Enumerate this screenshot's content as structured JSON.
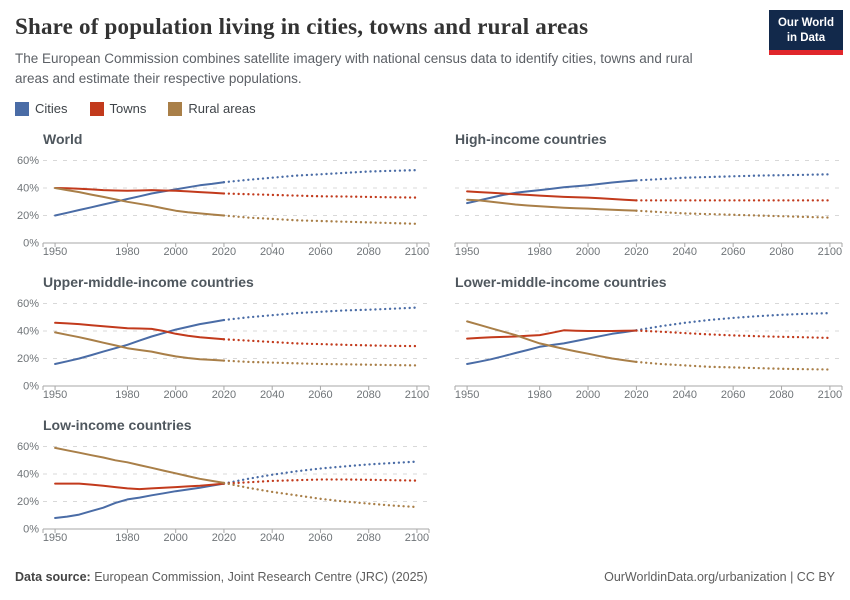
{
  "header": {
    "title": "Share of population living in cities, towns and rural areas",
    "subtitle": "The European Commission combines satellite imagery with national census data to identify cities, towns and rural areas and estimate their respective populations.",
    "logo": {
      "line1": "Our World",
      "line2": "in Data",
      "bg": "#12294B",
      "accent": "#E0262B"
    }
  },
  "legend": [
    {
      "label": "Cities",
      "color": "#4A6CA6"
    },
    {
      "label": "Towns",
      "color": "#C23A1C"
    },
    {
      "label": "Rural areas",
      "color": "#A97F48"
    }
  ],
  "axis": {
    "x_min": 1945,
    "x_max": 2105,
    "x_ticks": [
      1950,
      1980,
      2000,
      2020,
      2040,
      2060,
      2080,
      2100
    ],
    "y_ticks": [
      0,
      20,
      40,
      60
    ],
    "y_tick_labels": [
      "0%",
      "20%",
      "40%",
      "60%"
    ],
    "grid_color": "#d8d8d8",
    "axis_color": "#a7a7a7",
    "label_color": "#6f7478"
  },
  "chart_data": [
    {
      "type": "line",
      "title": "World",
      "y_labels": true,
      "hist_years": [
        1950,
        1955,
        1960,
        1965,
        1970,
        1975,
        1980,
        1985,
        1990,
        1995,
        2000,
        2005,
        2010,
        2015,
        2020
      ],
      "proj_years": [
        2020,
        2030,
        2040,
        2050,
        2060,
        2070,
        2080,
        2090,
        2100
      ],
      "series": [
        {
          "name": "Cities",
          "color": "#4A6CA6",
          "hist": [
            20,
            22,
            24,
            26,
            28,
            30,
            32,
            34,
            36,
            37.5,
            39,
            40.5,
            42,
            43,
            44.2
          ],
          "proj": [
            44.2,
            46,
            47.5,
            49,
            50,
            51,
            52,
            52.5,
            53
          ]
        },
        {
          "name": "Towns",
          "color": "#C23A1C",
          "hist": [
            40,
            39.8,
            39.5,
            39,
            38.5,
            38.2,
            38,
            38.2,
            38.5,
            38.2,
            38,
            37.5,
            37,
            36.5,
            36
          ],
          "proj": [
            36,
            35.5,
            35,
            34.5,
            34,
            33.8,
            33.5,
            33.2,
            33
          ]
        },
        {
          "name": "Rural areas",
          "color": "#A97F48",
          "hist": [
            40,
            38.5,
            37,
            35.2,
            33.5,
            31.7,
            30,
            28.5,
            27,
            25.2,
            23.5,
            22.3,
            21.5,
            20.7,
            20
          ],
          "proj": [
            20,
            18.5,
            17.5,
            16.5,
            16,
            15.5,
            15,
            14.5,
            14
          ]
        }
      ]
    },
    {
      "type": "line",
      "title": "High-income countries",
      "y_labels": false,
      "hist_years": [
        1950,
        1955,
        1960,
        1965,
        1970,
        1975,
        1980,
        1985,
        1990,
        1995,
        2000,
        2005,
        2010,
        2015,
        2020
      ],
      "proj_years": [
        2020,
        2030,
        2040,
        2050,
        2060,
        2070,
        2080,
        2090,
        2100
      ],
      "series": [
        {
          "name": "Cities",
          "color": "#4A6CA6",
          "hist": [
            29,
            31,
            33,
            35,
            36.5,
            37.5,
            38.5,
            39.5,
            40.5,
            41.2,
            42,
            43,
            44,
            44.8,
            45.5
          ],
          "proj": [
            45.5,
            46.5,
            47.5,
            48,
            48.5,
            49,
            49.3,
            49.6,
            50
          ]
        },
        {
          "name": "Towns",
          "color": "#C23A1C",
          "hist": [
            37.5,
            37,
            36.5,
            36,
            35.5,
            35,
            34.5,
            34,
            33.5,
            33.2,
            33,
            32.5,
            32,
            31.5,
            31
          ],
          "proj": [
            31,
            31,
            31,
            31,
            31,
            31,
            31,
            31,
            31
          ]
        },
        {
          "name": "Rural areas",
          "color": "#A97F48",
          "hist": [
            31.5,
            31,
            30,
            29,
            28,
            27.3,
            26.7,
            26.2,
            25.7,
            25.3,
            25,
            24.6,
            24.2,
            23.8,
            23.5
          ],
          "proj": [
            23.5,
            22.5,
            21.5,
            21,
            20.5,
            20,
            19.5,
            19,
            18.5
          ]
        }
      ]
    },
    {
      "type": "line",
      "title": "Upper-middle-income countries",
      "y_labels": true,
      "hist_years": [
        1950,
        1955,
        1960,
        1965,
        1970,
        1975,
        1980,
        1985,
        1990,
        1995,
        2000,
        2005,
        2010,
        2015,
        2020
      ],
      "proj_years": [
        2020,
        2030,
        2040,
        2050,
        2060,
        2070,
        2080,
        2090,
        2100
      ],
      "series": [
        {
          "name": "Cities",
          "color": "#4A6CA6",
          "hist": [
            16,
            18,
            20,
            22.5,
            25,
            27.5,
            30,
            33,
            36,
            38.5,
            41,
            43,
            45,
            46.5,
            48
          ],
          "proj": [
            48,
            50,
            51.5,
            53,
            54,
            55,
            55.5,
            56.2,
            57
          ]
        },
        {
          "name": "Towns",
          "color": "#C23A1C",
          "hist": [
            46,
            45.5,
            45,
            44.2,
            43.5,
            42.8,
            42,
            41.8,
            41.5,
            40,
            38,
            36.6,
            35.5,
            34.7,
            34
          ],
          "proj": [
            34,
            33,
            32,
            31,
            30.5,
            30,
            29.5,
            29.2,
            29
          ]
        },
        {
          "name": "Rural areas",
          "color": "#A97F48",
          "hist": [
            39,
            37.2,
            35.5,
            33.5,
            31.5,
            29.5,
            27.5,
            26.2,
            25,
            23.2,
            21.5,
            20.4,
            19.5,
            19,
            18.5
          ],
          "proj": [
            18.5,
            17.5,
            17,
            16.5,
            16,
            15.8,
            15.5,
            15.2,
            15
          ]
        }
      ]
    },
    {
      "type": "line",
      "title": "Lower-middle-income countries",
      "y_labels": false,
      "hist_years": [
        1950,
        1955,
        1960,
        1965,
        1970,
        1975,
        1980,
        1985,
        1990,
        1995,
        2000,
        2005,
        2010,
        2015,
        2020
      ],
      "proj_years": [
        2020,
        2030,
        2040,
        2050,
        2060,
        2070,
        2080,
        2090,
        2100
      ],
      "series": [
        {
          "name": "Cities",
          "color": "#4A6CA6",
          "hist": [
            16,
            17.7,
            19.5,
            21.7,
            24,
            26.2,
            28.5,
            29.8,
            31,
            32.7,
            34.5,
            36.2,
            38,
            39.2,
            40.5
          ],
          "proj": [
            40.5,
            43.5,
            46,
            48,
            49.5,
            50.8,
            51.8,
            52.5,
            53
          ]
        },
        {
          "name": "Towns",
          "color": "#C23A1C",
          "hist": [
            34.5,
            35,
            35.5,
            35.7,
            36,
            36.5,
            37,
            38.7,
            40.5,
            40.2,
            40,
            40,
            40,
            40.2,
            40.3
          ],
          "proj": [
            40.3,
            39.5,
            38.5,
            37.5,
            36.8,
            36.2,
            35.8,
            35.4,
            35
          ]
        },
        {
          "name": "Rural areas",
          "color": "#A97F48",
          "hist": [
            47,
            44.5,
            42,
            39.5,
            37,
            34,
            31,
            29,
            27,
            25.2,
            23.5,
            21.7,
            20,
            18.7,
            17.5
          ],
          "proj": [
            17.5,
            16,
            15,
            14,
            13.5,
            13,
            12.5,
            12.2,
            12
          ]
        }
      ]
    },
    {
      "type": "line",
      "title": "Low-income countries",
      "y_labels": true,
      "hist_years": [
        1950,
        1955,
        1960,
        1965,
        1970,
        1975,
        1980,
        1985,
        1990,
        1995,
        2000,
        2005,
        2010,
        2015,
        2020
      ],
      "proj_years": [
        2020,
        2030,
        2040,
        2050,
        2060,
        2070,
        2080,
        2090,
        2100
      ],
      "series": [
        {
          "name": "Cities",
          "color": "#4A6CA6",
          "hist": [
            8,
            9,
            10.5,
            13,
            15.5,
            19,
            21.5,
            22.8,
            24.5,
            26,
            27.5,
            28.7,
            30,
            31.5,
            33
          ],
          "proj": [
            33,
            36.5,
            39.5,
            42,
            44,
            45.5,
            47,
            48,
            49
          ]
        },
        {
          "name": "Towns",
          "color": "#C23A1C",
          "hist": [
            33,
            33,
            33,
            32.3,
            31.5,
            30.5,
            29.5,
            29,
            29.5,
            30,
            30.5,
            31,
            31.5,
            32.2,
            33
          ],
          "proj": [
            33,
            34,
            35,
            35.5,
            36,
            36,
            35.8,
            35.5,
            35.2
          ]
        },
        {
          "name": "Rural areas",
          "color": "#A97F48",
          "hist": [
            59,
            57.2,
            55.5,
            53.7,
            52,
            50,
            48.5,
            46.5,
            44.5,
            42.5,
            40.5,
            38.5,
            36.5,
            35,
            33.5
          ],
          "proj": [
            33.5,
            30,
            27,
            24.5,
            22,
            20,
            18.5,
            17,
            16
          ]
        }
      ]
    }
  ],
  "footer": {
    "source_prefix": "Data source:",
    "source_rest": " European Commission, Joint Research Centre (JRC) (2025)",
    "right": "OurWorldinData.org/urbanization | CC BY"
  }
}
